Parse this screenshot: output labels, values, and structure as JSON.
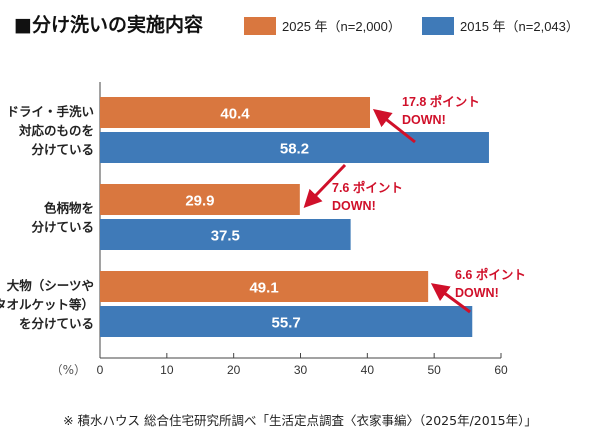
{
  "chart_data": {
    "type": "bar",
    "orientation": "horizontal",
    "title": "■分け洗いの実施内容",
    "categories": [
      [
        "ドライ・手洗い",
        "対応のものを",
        "分けている"
      ],
      [
        "色柄物を",
        "分けている"
      ],
      [
        "大物（シーツや",
        "タオルケット等）",
        "を分けている"
      ]
    ],
    "series": [
      {
        "name": "2025 年（n=2,000）",
        "color": "#d9773f",
        "values": [
          40.4,
          29.9,
          49.1
        ]
      },
      {
        "name": "2015 年（n=2,043）",
        "color": "#3f7ab8",
        "values": [
          58.2,
          37.5,
          55.7
        ]
      }
    ],
    "annotations": [
      [
        "17.8 ポイント",
        "DOWN!"
      ],
      [
        "7.6 ポイント",
        "DOWN!"
      ],
      [
        "6.6 ポイント",
        "DOWN!"
      ]
    ],
    "annotation_color": "#d0102a",
    "xlabel": "（%）",
    "xlim": [
      0,
      60
    ],
    "xticks": [
      0,
      10,
      20,
      30,
      40,
      50,
      60
    ],
    "grid": false,
    "legend_position": "top"
  },
  "footer": "※ 積水ハウス 総合住宅研究所調べ「生活定点調査〈衣家事編〉（2025年/2015年）」"
}
